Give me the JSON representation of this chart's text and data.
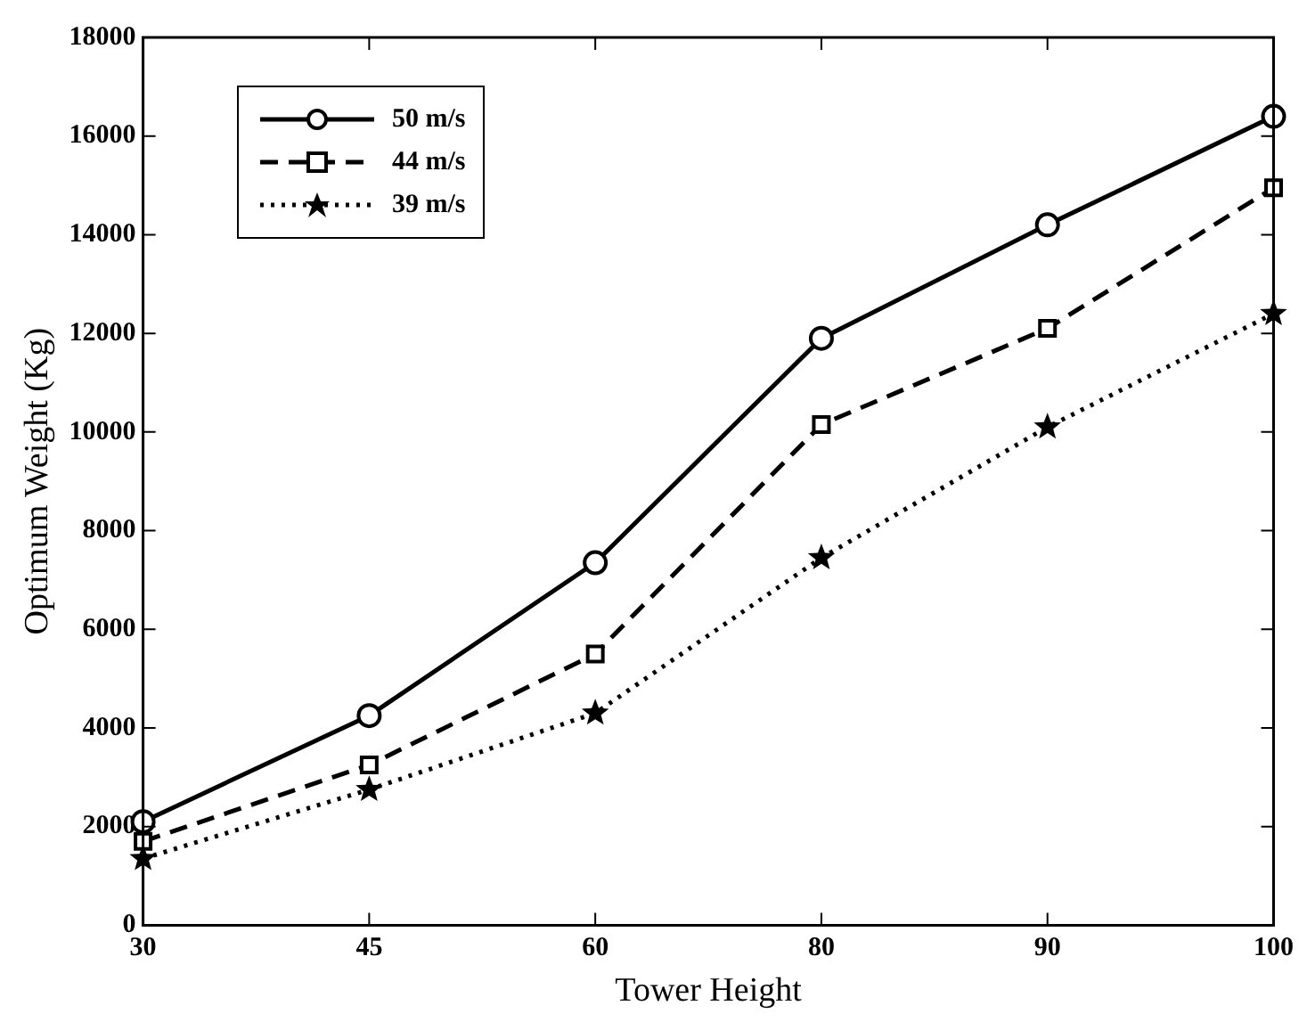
{
  "chart_data": {
    "type": "line",
    "xlabel": "Tower Height",
    "ylabel": "Optimum Weight (Kg)",
    "categories": [
      "30",
      "45",
      "60",
      "80",
      "90",
      "100"
    ],
    "ylim": [
      0,
      18000
    ],
    "yticks": [
      0,
      2000,
      4000,
      6000,
      8000,
      10000,
      12000,
      14000,
      16000,
      18000
    ],
    "grid": false,
    "legend": "top left",
    "series": [
      {
        "name": "50 m/s",
        "color": "#000000",
        "line_style": "solid",
        "marker": "circle",
        "values": [
          2100,
          4250,
          7350,
          11900,
          14200,
          16400
        ]
      },
      {
        "name": "44 m/s",
        "color": "#000000",
        "line_style": "dashed",
        "marker": "square",
        "values": [
          1700,
          3250,
          5500,
          10150,
          12100,
          14950
        ]
      },
      {
        "name": "39 m/s",
        "color": "#000000",
        "line_style": "dotted",
        "marker": "star",
        "values": [
          1350,
          2750,
          4300,
          7450,
          10100,
          12400
        ]
      }
    ]
  }
}
